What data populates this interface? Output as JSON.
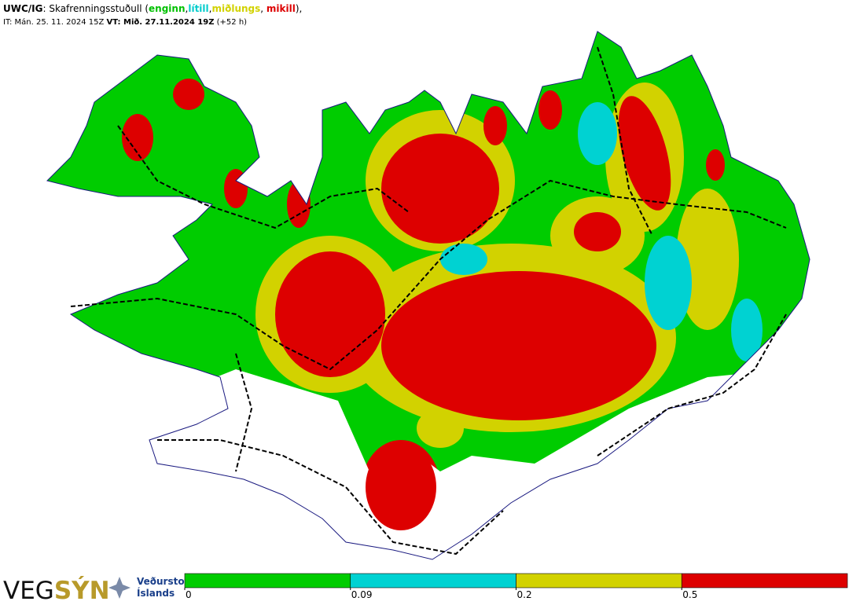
{
  "header": {
    "line1": [
      {
        "text": "UWC/IG",
        "color": "#000000",
        "bold": true
      },
      {
        "text": ": Skafrenningsstuðull (",
        "color": "#000000",
        "bold": false
      },
      {
        "text": "enginn",
        "color": "#00c000",
        "bold": true
      },
      {
        "text": ",",
        "color": "#000000",
        "bold": false
      },
      {
        "text": "lítill",
        "color": "#00cccc",
        "bold": true
      },
      {
        "text": ",",
        "color": "#000000",
        "bold": false
      },
      {
        "text": "miðlungs",
        "color": "#d2d200",
        "bold": true
      },
      {
        "text": ", ",
        "color": "#000000",
        "bold": false
      },
      {
        "text": "mikill",
        "color": "#dd0000",
        "bold": true
      },
      {
        "text": "),",
        "color": "#000000",
        "bold": false
      }
    ],
    "line2": [
      {
        "text": "IT: Mán. 25. 11. 2024 15Z ",
        "bold": false
      },
      {
        "text": "VT: Mið. 27.11.2024 19Z",
        "bold": true
      },
      {
        "text": " (+52 h)",
        "bold": false
      }
    ]
  },
  "logos": {
    "vegsyn_a": "VEG",
    "vegsyn_b": "SÝN",
    "vedur_1": "Veðurstofa",
    "vedur_2": "Íslands"
  },
  "legend": {
    "breaks": [
      0,
      0.09,
      0.2,
      0.5
    ],
    "colors": [
      "#00cc00",
      "#00d2d2",
      "#d2d200",
      "#dd0000"
    ]
  }
}
